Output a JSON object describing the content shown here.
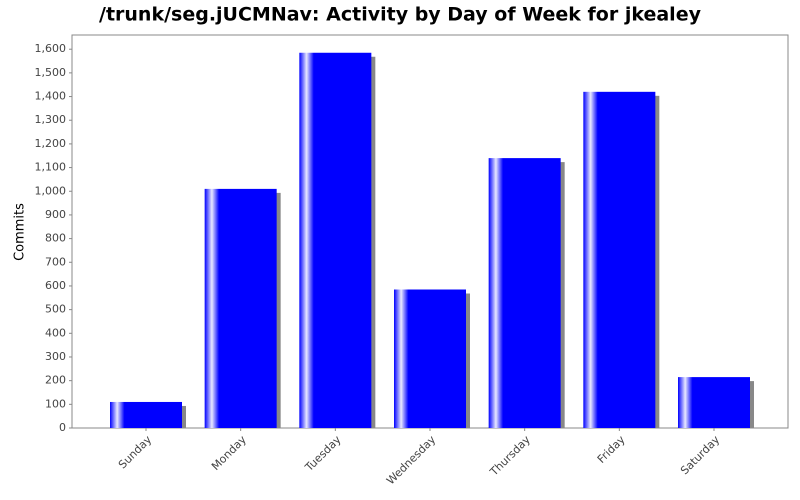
{
  "chart_data": {
    "type": "bar",
    "title": "/trunk/seg.jUCMNav: Activity by Day of Week for jkealey",
    "y_label": "Commits",
    "categories": [
      "Sunday",
      "Monday",
      "Tuesday",
      "Wednesday",
      "Thursday",
      "Friday",
      "Saturday"
    ],
    "values": [
      110,
      1010,
      1585,
      585,
      1140,
      1420,
      215
    ],
    "color": "#0000ff",
    "ylim": [
      0,
      1660
    ],
    "yticks": [
      0,
      100,
      200,
      300,
      400,
      500,
      600,
      700,
      800,
      900,
      {
        "value": 1000,
        "label": "1,000"
      },
      {
        "value": 1100,
        "label": "1,100"
      },
      {
        "value": 1200,
        "label": "1,200"
      },
      {
        "value": 1300,
        "label": "1,300"
      },
      {
        "value": 1400,
        "label": "1,400"
      },
      {
        "value": 1500,
        "label": "1,500"
      },
      {
        "value": 1600,
        "label": "1,600"
      }
    ]
  }
}
